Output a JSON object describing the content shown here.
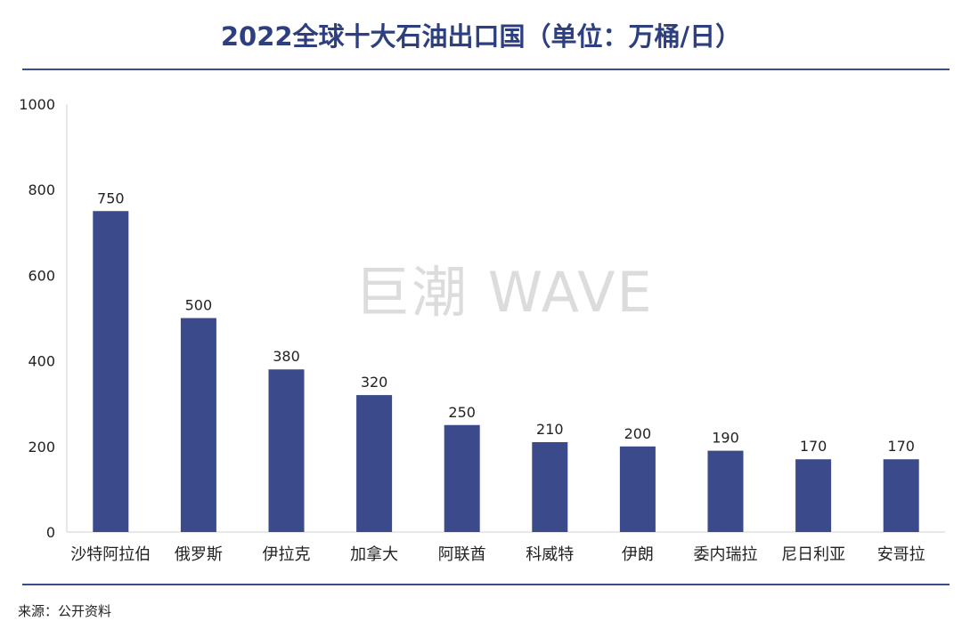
{
  "chart_data": {
    "type": "bar",
    "title": "2022全球十大石油出口国（单位：万桶/日）",
    "categories": [
      "沙特阿拉伯",
      "俄罗斯",
      "伊拉克",
      "加拿大",
      "阿联酋",
      "科威特",
      "伊朗",
      "委内瑞拉",
      "尼日利亚",
      "安哥拉"
    ],
    "values": [
      750,
      500,
      380,
      320,
      250,
      210,
      200,
      190,
      170,
      170
    ],
    "ylim": [
      0,
      1000
    ],
    "yticks": [
      0,
      200,
      400,
      600,
      800,
      1000
    ],
    "xlabel": "",
    "ylabel": "",
    "grid": false,
    "bar_color": "#3a4a8a"
  },
  "source": "来源：公开资料",
  "watermark": "巨潮 WAVE"
}
